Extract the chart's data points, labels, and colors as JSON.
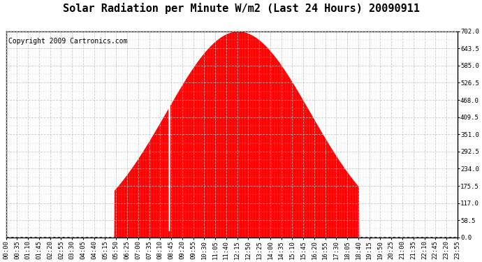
{
  "title": "Solar Radiation per Minute W/m2 (Last 24 Hours) 20090911",
  "copyright": "Copyright 2009 Cartronics.com",
  "fill_color": "#FF0000",
  "dashed_line_color": "#FF0000",
  "background_color": "#FFFFFF",
  "grid_color": "#C0C0C0",
  "y_min": 0.0,
  "y_max": 702.0,
  "y_ticks": [
    0.0,
    58.5,
    117.0,
    175.5,
    234.0,
    292.5,
    351.0,
    409.5,
    468.0,
    526.5,
    585.0,
    643.5,
    702.0
  ],
  "title_fontsize": 11,
  "copyright_fontsize": 7,
  "tick_fontsize": 6.5,
  "x_tick_labels": [
    "00:00",
    "00:35",
    "01:10",
    "01:45",
    "02:20",
    "02:55",
    "03:30",
    "04:05",
    "04:40",
    "05:15",
    "05:50",
    "06:25",
    "07:00",
    "07:35",
    "08:10",
    "08:45",
    "09:20",
    "09:55",
    "10:30",
    "11:05",
    "11:40",
    "12:15",
    "12:50",
    "13:25",
    "14:00",
    "14:35",
    "15:10",
    "15:45",
    "16:20",
    "16:55",
    "17:30",
    "18:05",
    "18:40",
    "19:15",
    "19:50",
    "20:25",
    "21:00",
    "21:35",
    "22:10",
    "22:45",
    "23:20",
    "23:55"
  ]
}
